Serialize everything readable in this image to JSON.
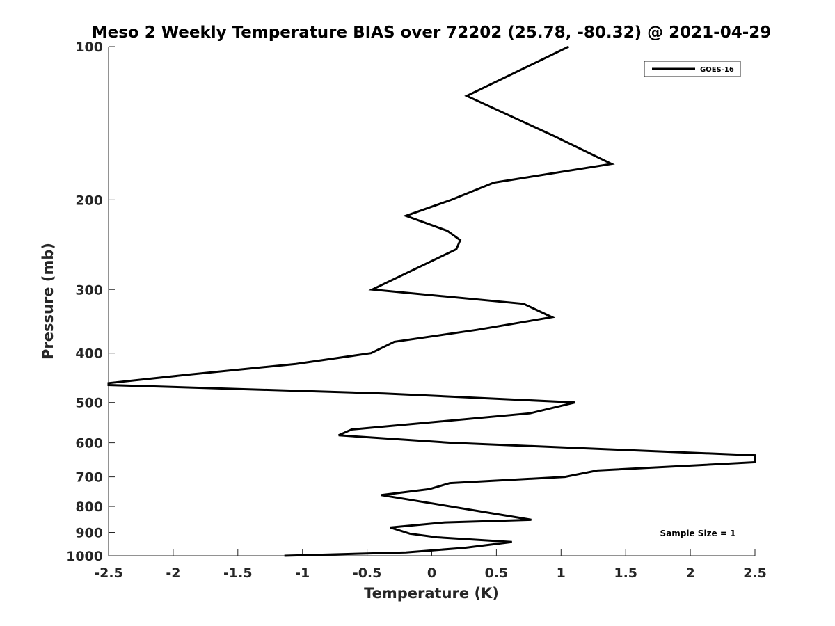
{
  "chart_data": {
    "type": "line",
    "title": "Meso 2 Weekly Temperature BIAS over 72202 (25.78, -80.32) @ 2021-04-29",
    "xlabel": "Temperature (K)",
    "ylabel": "Pressure (mb)",
    "xlim": [
      -2.5,
      2.5
    ],
    "ylim": [
      100,
      1000
    ],
    "yscale": "log",
    "yreversed": true,
    "x_ticks": [
      -2.5,
      -2,
      -1.5,
      -1,
      -0.5,
      0,
      0.5,
      1,
      1.5,
      2,
      2.5
    ],
    "x_tick_labels": [
      "-2.5",
      "-2",
      "-1.5",
      "-1",
      "-0.5",
      "0",
      "0.5",
      "1",
      "1.5",
      "2",
      "2.5"
    ],
    "y_ticks": [
      100,
      200,
      300,
      400,
      500,
      600,
      700,
      800,
      900,
      1000
    ],
    "y_tick_labels": [
      "100",
      "200",
      "300",
      "400",
      "500",
      "600",
      "700",
      "800",
      "900",
      "1000"
    ],
    "grid": false,
    "legend": {
      "position": "top-right",
      "entries": [
        "GOES-16"
      ]
    },
    "annotation": "Sample Size = 1",
    "series": [
      {
        "name": "GOES-16",
        "color": "#000000",
        "points": [
          [
            1.06,
            100
          ],
          [
            0.27,
            125
          ],
          [
            0.95,
            150
          ],
          [
            1.39,
            170
          ],
          [
            0.48,
            185
          ],
          [
            0.15,
            200
          ],
          [
            -0.2,
            215
          ],
          [
            0.12,
            230
          ],
          [
            0.22,
            240
          ],
          [
            0.19,
            250
          ],
          [
            -0.46,
            300
          ],
          [
            0.71,
            320
          ],
          [
            0.93,
            340
          ],
          [
            0.35,
            360
          ],
          [
            -0.29,
            380
          ],
          [
            -0.47,
            400
          ],
          [
            -1.05,
            420
          ],
          [
            -1.85,
            440
          ],
          [
            -2.5,
            458
          ],
          [
            -2.5,
            462
          ],
          [
            -0.37,
            480
          ],
          [
            1.11,
            500
          ],
          [
            0.76,
            525
          ],
          [
            -0.62,
            565
          ],
          [
            -0.72,
            580
          ],
          [
            0.15,
            600
          ],
          [
            1.5,
            620
          ],
          [
            2.5,
            635
          ],
          [
            2.5,
            655
          ],
          [
            1.28,
            680
          ],
          [
            1.03,
            700
          ],
          [
            0.14,
            720
          ],
          [
            -0.02,
            740
          ],
          [
            -0.39,
            760
          ],
          [
            0.77,
            850
          ],
          [
            0.1,
            860
          ],
          [
            -0.32,
            880
          ],
          [
            -0.17,
            905
          ],
          [
            0.04,
            920
          ],
          [
            0.62,
            940
          ],
          [
            0.25,
            965
          ],
          [
            -0.2,
            985
          ],
          [
            -1.14,
            1000
          ]
        ]
      }
    ]
  }
}
